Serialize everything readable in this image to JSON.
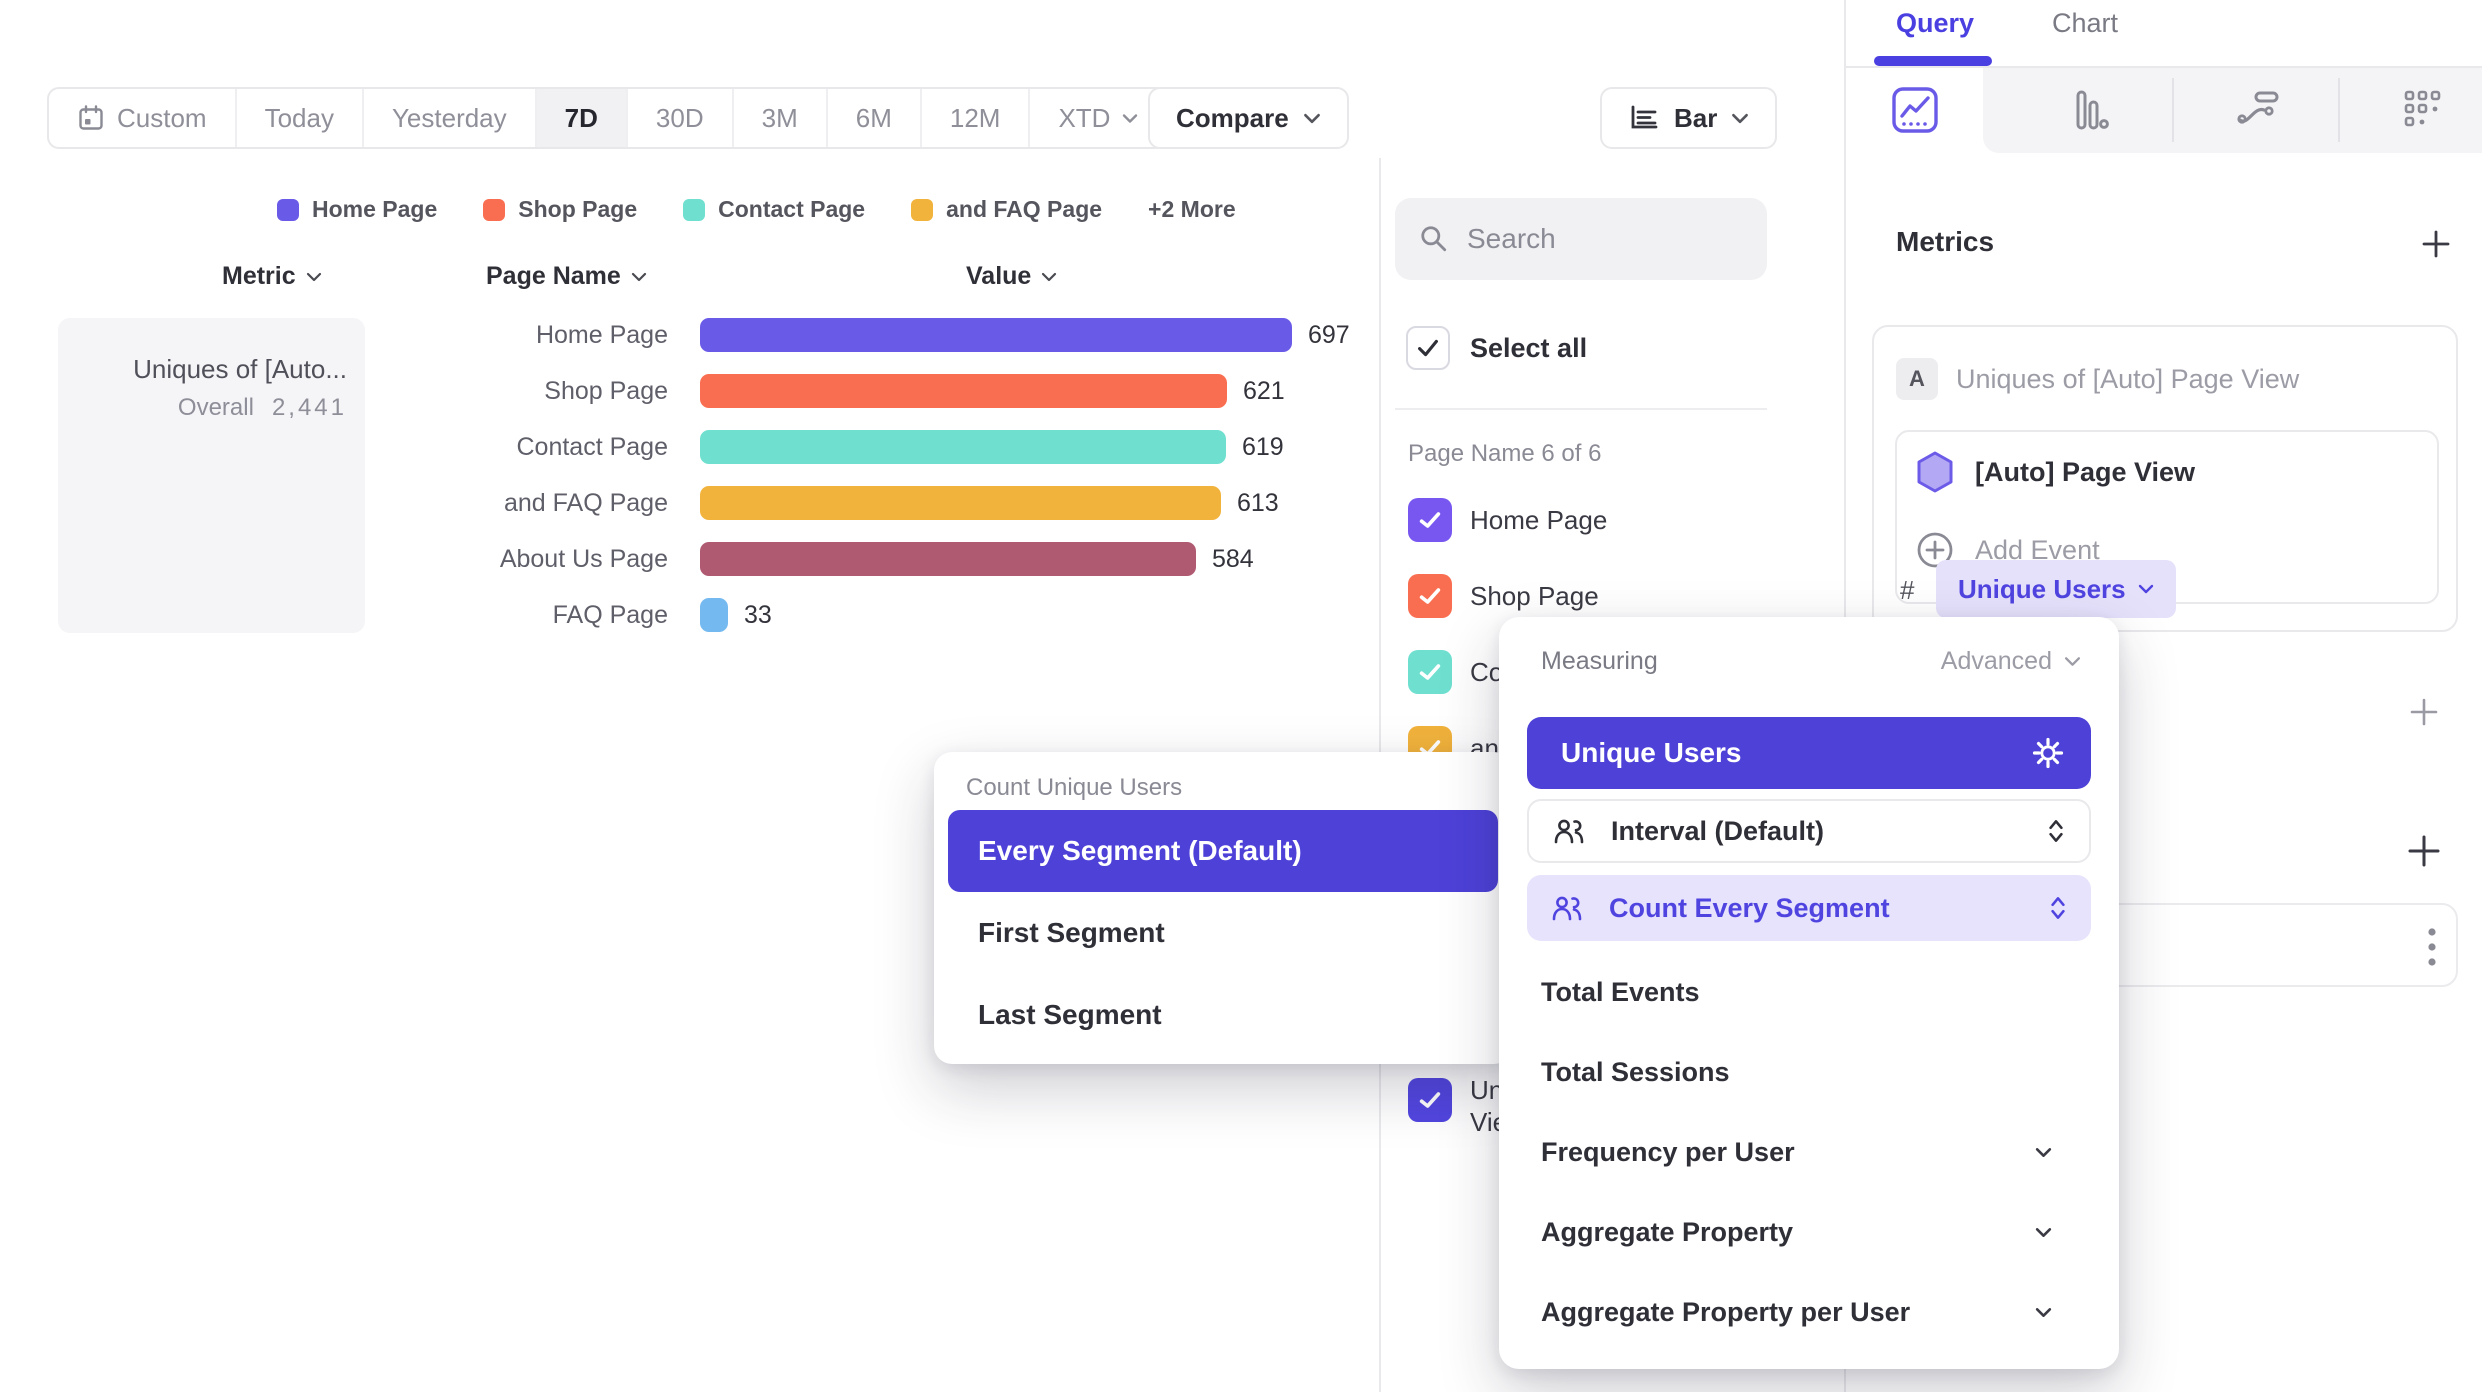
{
  "toolbar": {
    "ranges": [
      "Custom",
      "Today",
      "Yesterday",
      "7D",
      "30D",
      "3M",
      "6M",
      "12M",
      "XTD"
    ],
    "active_range": "7D",
    "compare_label": "Compare",
    "chart_type_label": "Bar"
  },
  "legend": {
    "items": [
      {
        "label": "Home Page",
        "color": "#6A5AE8"
      },
      {
        "label": "Shop Page",
        "color": "#F96E51"
      },
      {
        "label": "Contact Page",
        "color": "#6FDFD0"
      },
      {
        "label": "and FAQ Page",
        "color": "#F2B33C"
      }
    ],
    "more_label": "+2 More"
  },
  "table": {
    "headers": {
      "metric": "Metric",
      "page_name": "Page Name",
      "value": "Value"
    }
  },
  "metric_summary": {
    "title": "Uniques of [Auto...",
    "overall_label": "Overall",
    "overall_value": "2,441"
  },
  "chart_data": {
    "type": "bar",
    "orientation": "horizontal",
    "categories": [
      "Home Page",
      "Shop Page",
      "Contact Page",
      "and FAQ Page",
      "About Us Page",
      "FAQ Page"
    ],
    "values": [
      697,
      621,
      619,
      613,
      584,
      33
    ],
    "value_labels": [
      "697",
      "621",
      "619",
      "613",
      "584",
      "33"
    ],
    "colors": [
      "#6A5AE8",
      "#F96E51",
      "#6FDFD0",
      "#F2B33C",
      "#B05A72",
      "#74B9F0"
    ],
    "overall": 2441,
    "xlim": [
      0,
      697
    ],
    "grid": false,
    "legend_position": "top"
  },
  "filter_panel": {
    "search_placeholder": "Search",
    "select_all_label": "Select all",
    "group_label": "Page Name 6 of 6",
    "items": [
      {
        "label": "Home Page",
        "color": "#7857F0",
        "checked": true
      },
      {
        "label": "Shop Page",
        "color": "#F96E51",
        "checked": true
      },
      {
        "label": "Contact Page",
        "color": "#6FDFD0",
        "checked": true
      },
      {
        "label": "and FAQ Page",
        "color": "#F2B33C",
        "checked": true
      },
      {
        "label_line1": "Uni",
        "label_line2": "Vie",
        "color": "#5246E0",
        "checked": true,
        "clipped": true
      }
    ]
  },
  "sidebar": {
    "tabs": {
      "query": "Query",
      "chart": "Chart"
    },
    "active_tab": "Query",
    "metrics_heading": "Metrics",
    "metric_card": {
      "badge": "A",
      "title": "Uniques of [Auto] Page View",
      "event_label": "[Auto] Page View",
      "add_event_label": "Add Event",
      "hash": "#",
      "measure_pill_label": "Unique Users"
    },
    "accent_color": "#4F44E0"
  },
  "measuring_menu": {
    "title": "Measuring",
    "advanced_label": "Advanced",
    "selected": "Unique Users",
    "stepper_rows": [
      {
        "label": "Interval (Default)",
        "highlighted": false
      },
      {
        "label": "Count Every Segment",
        "highlighted": true
      }
    ],
    "options": [
      {
        "label": "Total Events",
        "chevron": false
      },
      {
        "label": "Total Sessions",
        "chevron": false
      },
      {
        "label": "Frequency per User",
        "chevron": true
      },
      {
        "label": "Aggregate Property",
        "chevron": true
      },
      {
        "label": "Aggregate Property per User",
        "chevron": true
      }
    ]
  },
  "segment_menu": {
    "title": "Count Unique Users",
    "selected": "Every Segment (Default)",
    "options": [
      "First Segment",
      "Last Segment"
    ]
  }
}
